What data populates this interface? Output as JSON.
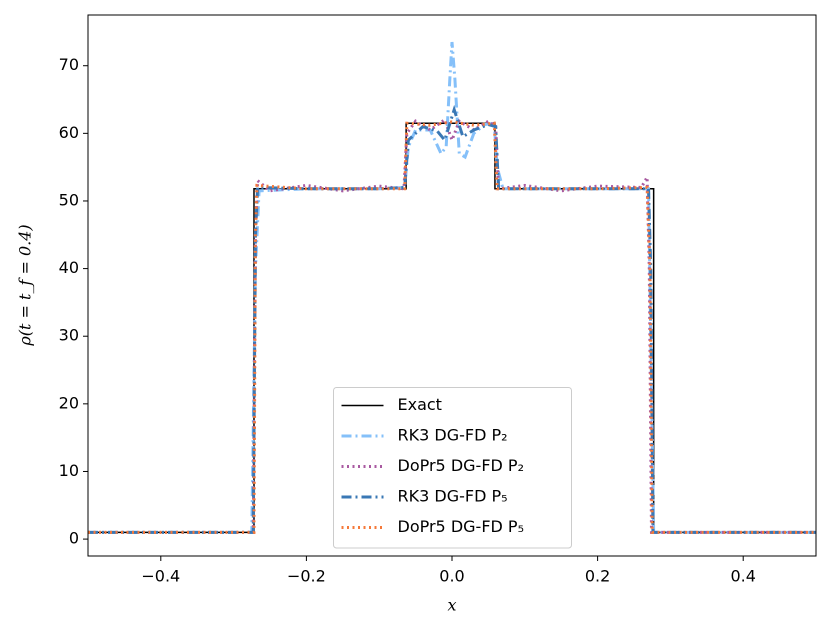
{
  "chart_data": {
    "type": "line",
    "xlabel": "x",
    "ylabel": "ρ(t = t_f = 0.4)",
    "xlim": [
      -0.5,
      0.5
    ],
    "ylim": [
      -2.5,
      77.5
    ],
    "xticks": [
      {
        "value": -0.4,
        "label": "−0.4"
      },
      {
        "value": -0.2,
        "label": "−0.2"
      },
      {
        "value": 0.0,
        "label": "0.0"
      },
      0.2,
      0.4
    ],
    "yticks": [
      0,
      10,
      20,
      30,
      40,
      50,
      60,
      70
    ],
    "grid": false,
    "legend": "lower center",
    "series": [
      {
        "name": "Exact",
        "color": "#000000",
        "linestyle": "solid",
        "x": [
          -0.5,
          -0.272,
          -0.272,
          -0.063,
          -0.063,
          0.059,
          0.059,
          0.277,
          0.277,
          0.5
        ],
        "values": [
          1,
          1,
          51.8,
          51.8,
          61.5,
          61.5,
          51.8,
          51.8,
          1,
          1
        ]
      },
      {
        "name": "RK3 DG-FD P₂",
        "color": "#85c0f9",
        "linestyle": "dashdot",
        "x": [
          -0.5,
          -0.275,
          -0.27,
          -0.265,
          -0.2,
          -0.1,
          -0.065,
          -0.06,
          -0.05,
          -0.03,
          -0.015,
          -0.008,
          -0.003,
          0.0,
          0.004,
          0.01,
          0.018,
          0.03,
          0.045,
          0.058,
          0.062,
          0.07,
          0.1,
          0.2,
          0.27,
          0.273,
          0.277,
          0.5
        ],
        "values": [
          1,
          1,
          40,
          51.5,
          51.8,
          51.8,
          52,
          58,
          60.5,
          60.5,
          57,
          58,
          68,
          73.5,
          68,
          57,
          56.5,
          60,
          61.3,
          61.5,
          55,
          51.8,
          51.8,
          51.8,
          51.8,
          30,
          1,
          1
        ]
      },
      {
        "name": "DoPr5 DG-FD P₂",
        "color": "#a95aa1",
        "linestyle": "dotted",
        "x": [
          -0.5,
          -0.273,
          -0.27,
          -0.267,
          -0.25,
          -0.2,
          -0.15,
          -0.1,
          -0.066,
          -0.062,
          -0.05,
          -0.03,
          -0.01,
          0.0,
          0.01,
          0.03,
          0.05,
          0.06,
          0.064,
          0.1,
          0.15,
          0.2,
          0.26,
          0.268,
          0.271,
          0.274,
          0.5
        ],
        "values": [
          1,
          1,
          45,
          53,
          51.5,
          52.3,
          51.5,
          52.2,
          51.8,
          60,
          61.8,
          60.5,
          62,
          59,
          61.8,
          60.5,
          61.8,
          61,
          51.8,
          52.3,
          51.5,
          52.2,
          52,
          53.5,
          40,
          1,
          1
        ]
      },
      {
        "name": "RK3 DG-FD P₅",
        "color": "#3a78b5",
        "linestyle": "dashdot",
        "x": [
          -0.5,
          -0.273,
          -0.27,
          -0.267,
          -0.2,
          -0.1,
          -0.065,
          -0.06,
          -0.04,
          -0.02,
          -0.01,
          0.003,
          0.015,
          0.03,
          0.05,
          0.06,
          0.064,
          0.1,
          0.2,
          0.27,
          0.273,
          0.276,
          0.5
        ],
        "values": [
          1,
          1,
          45,
          52,
          51.8,
          51.8,
          52,
          59,
          61,
          60.3,
          59,
          63.5,
          59.5,
          60.5,
          61.3,
          61,
          51.8,
          51.8,
          51.8,
          51.8,
          40,
          1,
          1
        ]
      },
      {
        "name": "DoPr5 DG-FD P₅",
        "color": "#f5793a",
        "linestyle": "dotted",
        "x": [
          -0.5,
          -0.272,
          -0.27,
          -0.268,
          -0.2,
          -0.1,
          -0.065,
          -0.062,
          -0.03,
          0.0,
          0.03,
          0.058,
          0.062,
          0.1,
          0.2,
          0.268,
          0.272,
          0.275,
          0.5
        ],
        "values": [
          1,
          1,
          45,
          52.3,
          51.8,
          51.8,
          51.8,
          61.5,
          61.2,
          61.7,
          61.2,
          61.5,
          51.8,
          51.8,
          51.8,
          52,
          40,
          1,
          1
        ]
      }
    ]
  }
}
